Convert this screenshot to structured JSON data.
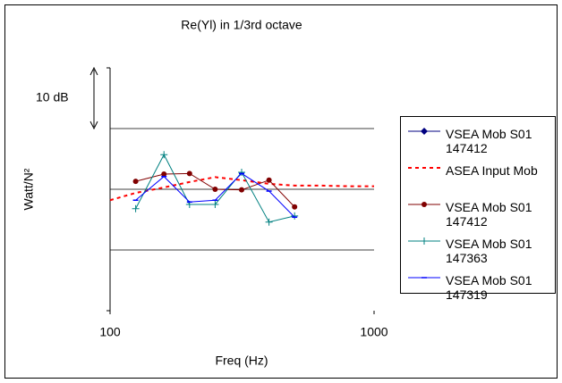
{
  "chart_data": {
    "type": "line",
    "title": "Re(Yl) in 1/3rd octave",
    "x_label": "Freq (Hz)",
    "y_label": "Watt/N²",
    "annotation": "10 dB",
    "xscale": "log",
    "xlim": [
      100,
      1000
    ],
    "xticks": [
      100,
      1000
    ],
    "ylim": [
      -20,
      20
    ],
    "yticks": [
      -20,
      -10,
      0,
      10,
      20
    ],
    "grid": true,
    "legend": "right",
    "series": [
      {
        "name": "VSEA Mob S01 147412",
        "color": "#000080",
        "marker": "diamond",
        "dash": false,
        "x": [
          125,
          160,
          200,
          250,
          315,
          400,
          500
        ],
        "values": [
          null,
          null,
          null,
          null,
          null,
          null,
          null
        ]
      },
      {
        "name": "ASEA Input Mob",
        "color": "#ff0000",
        "marker": "none",
        "dash": true,
        "x": [
          100,
          125,
          160,
          200,
          250,
          315,
          400,
          500,
          630,
          800,
          1000
        ],
        "values": [
          -1.8,
          -0.6,
          0.3,
          1.2,
          2,
          1.5,
          0.9,
          0.6,
          0.6,
          0.5,
          0.5
        ]
      },
      {
        "name": "VSEA Mob S01 147412",
        "color": "#800000",
        "marker": "circle",
        "dash": false,
        "x": [
          125,
          160,
          200,
          250,
          315,
          400,
          500
        ],
        "values": [
          1.3,
          2.5,
          2.6,
          0,
          -0.1,
          1.5,
          -2.9
        ]
      },
      {
        "name": "VSEA Mob S01 147363",
        "color": "#008080",
        "marker": "plus",
        "dash": false,
        "x": [
          125,
          160,
          200,
          250,
          315,
          400,
          500
        ],
        "values": [
          -3.2,
          5.7,
          -2.5,
          -2.5,
          2.8,
          -5.4,
          -4.4
        ]
      },
      {
        "name": "VSEA Mob S01 147319",
        "color": "#0000ff",
        "marker": "dash",
        "dash": false,
        "x": [
          125,
          160,
          200,
          250,
          315,
          400,
          500
        ],
        "values": [
          -1.8,
          2.1,
          -2.1,
          -1.8,
          2.6,
          -0.3,
          -4.6
        ]
      }
    ]
  }
}
